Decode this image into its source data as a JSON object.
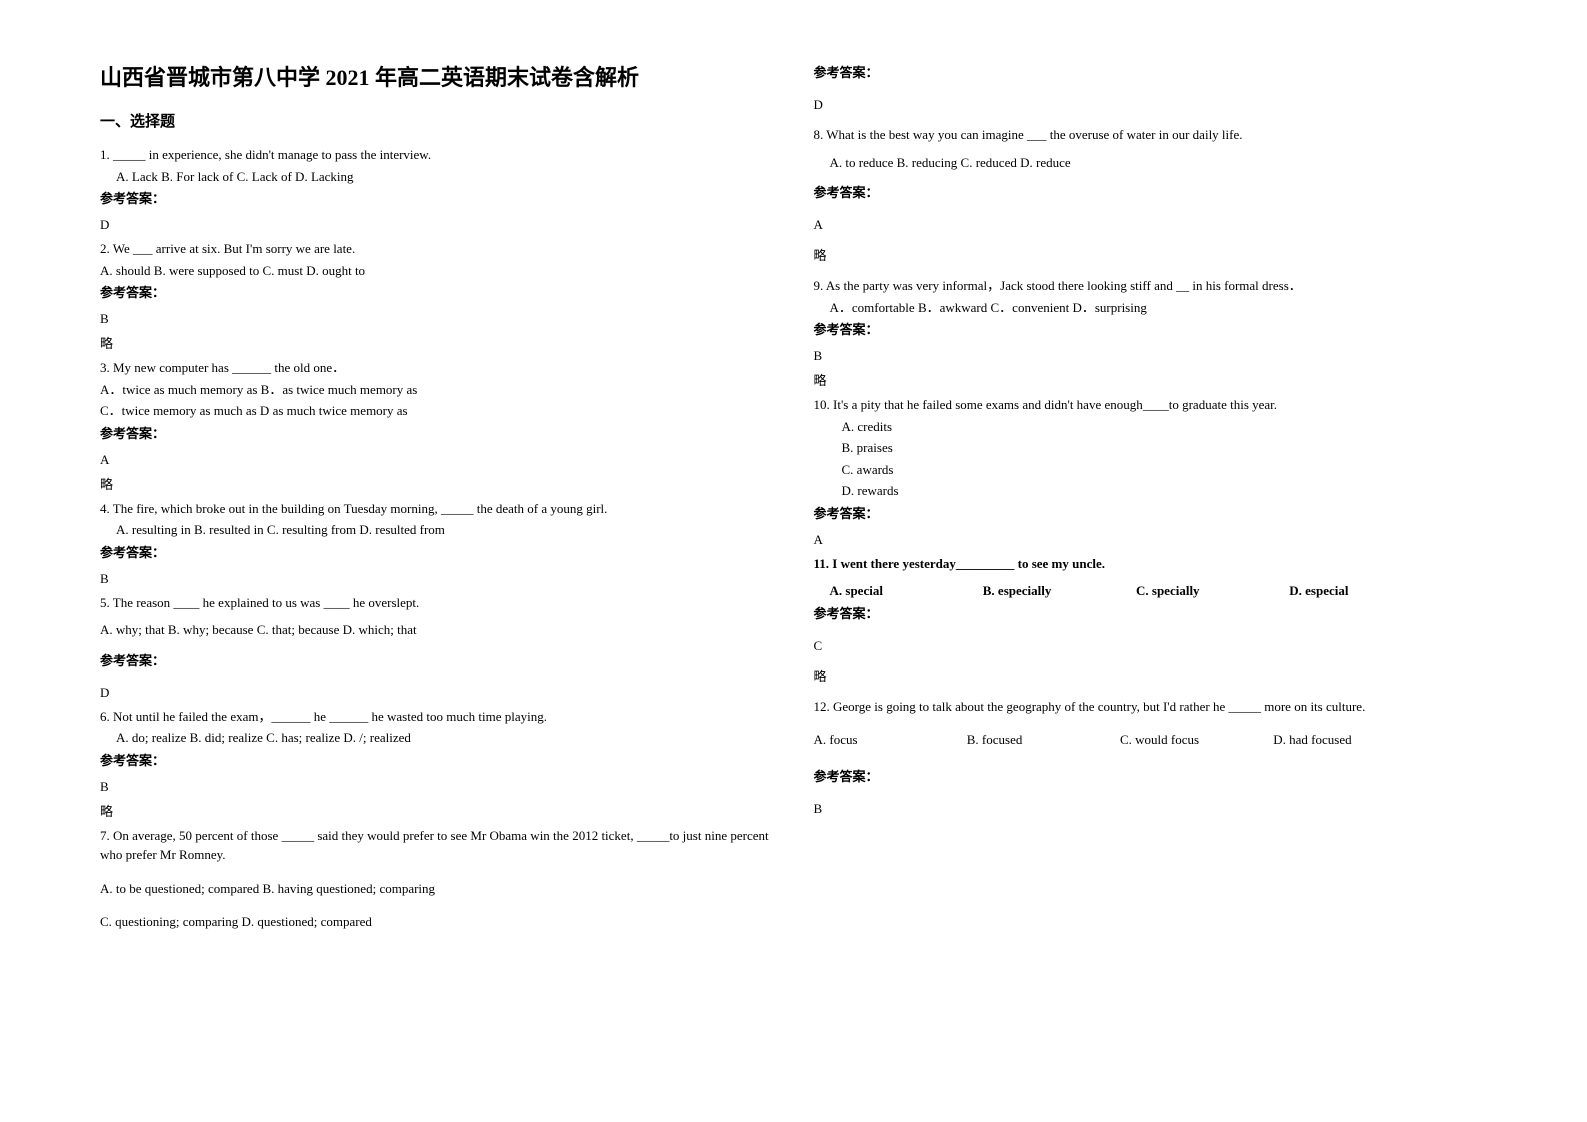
{
  "document": {
    "title": "山西省晋城市第八中学 2021 年高二英语期末试卷含解析",
    "section1_label": "一、选择题",
    "answer_label": "参考答案：",
    "lue": "略"
  },
  "left": {
    "q1": {
      "text": "1. _____ in experience, she didn't manage to pass the interview.",
      "opts": "A. Lack  B. For lack of   C. Lack of  D. Lacking",
      "ans": "D"
    },
    "q2": {
      "text": "2. We ___ arrive at six. But I'm sorry we are late.",
      "opts": "A. should   B. were supposed to  C. must  D. ought to",
      "ans": "B"
    },
    "q3": {
      "text": "3. My new computer has ______ the old one．",
      "opts1": "A．twice as much memory as           B．as twice much memory as",
      "opts2": "C．twice memory as much as           D as much twice memory as",
      "ans": "A"
    },
    "q4": {
      "text": "4. The fire, which broke out in the building on Tuesday morning, _____ the death of a young girl.",
      "opts": "A. resulting in                   B. resulted in                        C. resulting from                   D. resulted from",
      "ans": "B"
    },
    "q5": {
      "text": "5. The reason ____ he explained to us was ____ he overslept.",
      "opts": "A. why; that  B. why; because  C. that; because  D. which; that",
      "ans": "D"
    },
    "q6": {
      "text": "6. Not until he failed the exam，______ he ______ he wasted too much time playing.",
      "opts": "A. do; realize      B. did; realize    C. has; realize     D. /; realized",
      "ans": "B"
    },
    "q7": {
      "text": "7. On average, 50 percent of those _____ said they would prefer to see Mr Obama win the 2012 ticket, _____to just nine percent who prefer Mr Romney.",
      "opts1": "A. to be questioned; compared         B. having questioned; comparing",
      "opts2": "C. questioning; comparing           D. questioned; compared"
    }
  },
  "right": {
    "q7ans": "D",
    "q8": {
      "text": "8. What is the best way you can imagine ___ the overuse of water in our daily life.",
      "opts": "A. to reduce    B. reducing    C. reduced       D. reduce",
      "ans": "A"
    },
    "q9": {
      "text": "9. As the party was very informal，Jack stood there looking stiff and __ in his    formal dress．",
      "opts": "A．comfortable   B．awkward   C．convenient   D．surprising",
      "ans": "B"
    },
    "q10": {
      "text": "10. It's a pity that he failed some exams and didn't have enough____to graduate this year.",
      "optA": "A. credits",
      "optB": "B. praises",
      "optC": "C. awards",
      "optD": "D. rewards",
      "ans": "A"
    },
    "q11": {
      "text": "11. I went there yesterday_________ to see my uncle.",
      "optA": "A. special",
      "optB": "B. especially",
      "optC": "C. specially",
      "optD": "D. especial",
      "ans": "C"
    },
    "q12": {
      "text": "12. George is going to talk about the geography of the country, but I'd rather he _____ more on its culture.",
      "optA": "A. focus",
      "optB": "B. focused",
      "optC": "C. would focus",
      "optD": "D. had focused",
      "ans": "B"
    }
  }
}
